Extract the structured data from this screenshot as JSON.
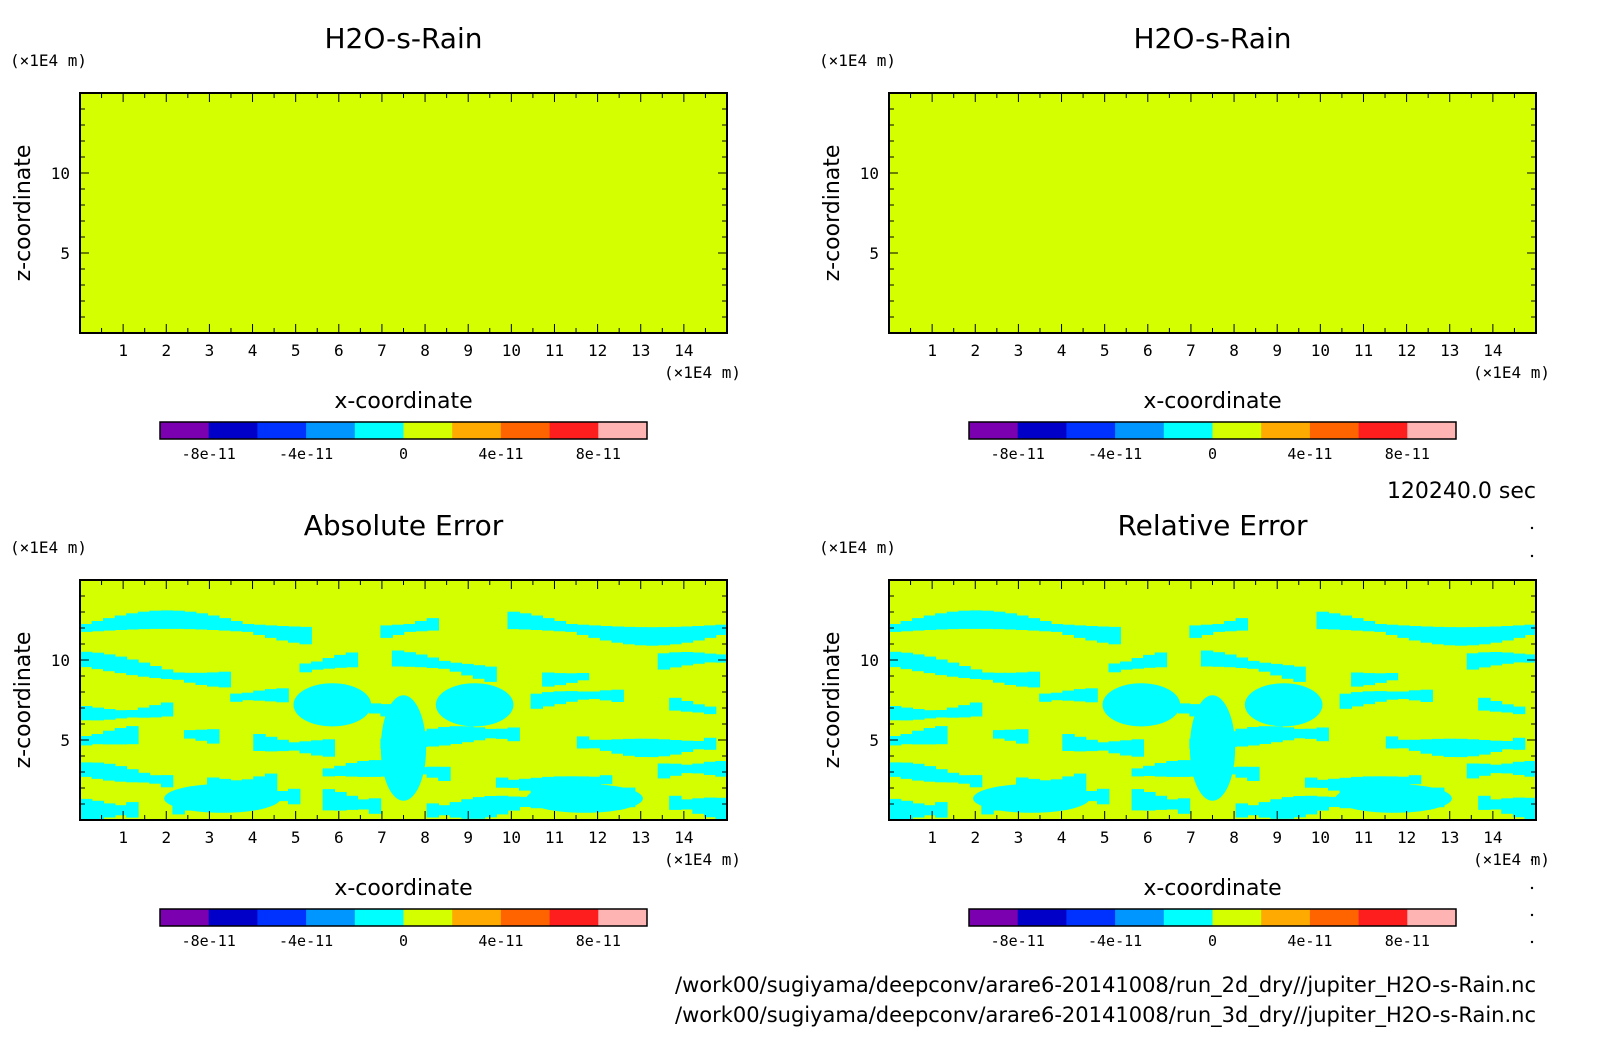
{
  "chart_data": [
    {
      "type": "heatmap",
      "title": "H2O-s-Rain",
      "xlabel": "x-coordinate",
      "ylabel": "z-coordinate",
      "x_unit": "(×1E4 m)",
      "y_unit": "(×1E4 m)",
      "x_ticks": [
        "1",
        "2",
        "3",
        "4",
        "5",
        "6",
        "7",
        "8",
        "9",
        "10",
        "11",
        "12",
        "13",
        "14"
      ],
      "y_ticks": [
        "5",
        "10"
      ],
      "xlim": [
        0,
        15
      ],
      "ylim": [
        0,
        15
      ],
      "field": "uniform",
      "field_value": 0,
      "colorbar": {
        "range": [
          -1e-10,
          1e-10
        ],
        "colors": [
          "#7a00b0",
          "#0000c8",
          "#0032ff",
          "#0096ff",
          "#00ffff",
          "#d4ff00",
          "#ffaa00",
          "#ff6400",
          "#ff1e1e",
          "#ffb4b4"
        ],
        "labels": [
          "-8e-11",
          "-4e-11",
          "0",
          "4e-11",
          "8e-11"
        ]
      }
    },
    {
      "type": "heatmap",
      "title": "H2O-s-Rain",
      "xlabel": "x-coordinate",
      "ylabel": "z-coordinate",
      "x_unit": "(×1E4 m)",
      "y_unit": "(×1E4 m)",
      "x_ticks": [
        "1",
        "2",
        "3",
        "4",
        "5",
        "6",
        "7",
        "8",
        "9",
        "10",
        "11",
        "12",
        "13",
        "14"
      ],
      "y_ticks": [
        "5",
        "10"
      ],
      "xlim": [
        0,
        15
      ],
      "ylim": [
        0,
        15
      ],
      "field": "uniform",
      "field_value": 0,
      "colorbar": {
        "range": [
          -1e-10,
          1e-10
        ],
        "colors": [
          "#7a00b0",
          "#0000c8",
          "#0032ff",
          "#0096ff",
          "#00ffff",
          "#d4ff00",
          "#ffaa00",
          "#ff6400",
          "#ff1e1e",
          "#ffb4b4"
        ],
        "labels": [
          "-8e-11",
          "-4e-11",
          "0",
          "4e-11",
          "8e-11"
        ]
      }
    },
    {
      "type": "heatmap",
      "title": "Absolute Error",
      "xlabel": "x-coordinate",
      "ylabel": "z-coordinate",
      "x_unit": "(×1E4 m)",
      "y_unit": "(×1E4 m)",
      "x_ticks": [
        "1",
        "2",
        "3",
        "4",
        "5",
        "6",
        "7",
        "8",
        "9",
        "10",
        "11",
        "12",
        "13",
        "14"
      ],
      "y_ticks": [
        "5",
        "10"
      ],
      "xlim": [
        0,
        15
      ],
      "ylim": [
        0,
        15
      ],
      "field": "patterned",
      "field_values": [
        -1e-11,
        0
      ],
      "colorbar": {
        "range": [
          -1e-10,
          1e-10
        ],
        "colors": [
          "#7a00b0",
          "#0000c8",
          "#0032ff",
          "#0096ff",
          "#00ffff",
          "#d4ff00",
          "#ffaa00",
          "#ff6400",
          "#ff1e1e",
          "#ffb4b4"
        ],
        "labels": [
          "-8e-11",
          "-4e-11",
          "0",
          "4e-11",
          "8e-11"
        ]
      }
    },
    {
      "type": "heatmap",
      "title": "Relative Error",
      "xlabel": "x-coordinate",
      "ylabel": "z-coordinate",
      "x_unit": "(×1E4 m)",
      "y_unit": "(×1E4 m)",
      "x_ticks": [
        "1",
        "2",
        "3",
        "4",
        "5",
        "6",
        "7",
        "8",
        "9",
        "10",
        "11",
        "12",
        "13",
        "14"
      ],
      "y_ticks": [
        "5",
        "10"
      ],
      "xlim": [
        0,
        15
      ],
      "ylim": [
        0,
        15
      ],
      "field": "patterned",
      "field_values": [
        -1e-11,
        0
      ],
      "colorbar": {
        "range": [
          -1e-10,
          1e-10
        ],
        "colors": [
          "#7a00b0",
          "#0000c8",
          "#0032ff",
          "#0096ff",
          "#00ffff",
          "#d4ff00",
          "#ffaa00",
          "#ff6400",
          "#ff1e1e",
          "#ffb4b4"
        ],
        "labels": [
          "-8e-11",
          "-4e-11",
          "0",
          "4e-11",
          "8e-11"
        ]
      }
    }
  ],
  "time_label": "120240.0 sec",
  "file_paths": [
    "/work00/sugiyama/deepconv/arare6-20141008/run_2d_dry//jupiter_H2O-s-Rain.nc",
    "/work00/sugiyama/deepconv/arare6-20141008/run_3d_dry//jupiter_H2O-s-Rain.nc"
  ],
  "colors": {
    "field_zero": "#d4ff00",
    "field_negative": "#00ffff"
  }
}
